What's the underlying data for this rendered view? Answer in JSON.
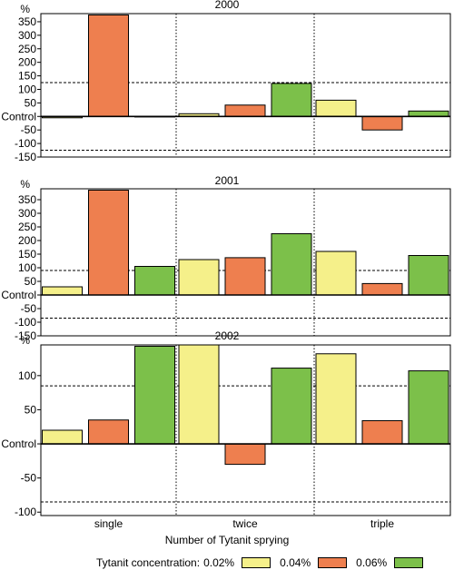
{
  "chart_data": [
    {
      "type": "bar",
      "title": "2000",
      "unit": "%",
      "categories": [
        "single",
        "twice",
        "triple"
      ],
      "series": [
        {
          "name": "0.02%",
          "color": "#f5f08a",
          "values": [
            -5,
            10,
            60
          ]
        },
        {
          "name": "0.04%",
          "color": "#ee7f4f",
          "values": [
            375,
            42,
            -50
          ]
        },
        {
          "name": "0.06%",
          "color": "#7cc04a",
          "values": [
            -2,
            122,
            20
          ]
        }
      ],
      "yticks": [
        "-150",
        "-100",
        "-50",
        "Control",
        "50",
        "100",
        "150",
        "200",
        "250",
        "300",
        "350"
      ],
      "ylim": [
        -150,
        380
      ],
      "reference_lines": [
        125,
        -125
      ],
      "grid": false
    },
    {
      "type": "bar",
      "title": "2001",
      "unit": "%",
      "categories": [
        "single",
        "twice",
        "triple"
      ],
      "series": [
        {
          "name": "0.02%",
          "color": "#f5f08a",
          "values": [
            30,
            130,
            160
          ]
        },
        {
          "name": "0.04%",
          "color": "#ee7f4f",
          "values": [
            385,
            137,
            42
          ]
        },
        {
          "name": "0.06%",
          "color": "#7cc04a",
          "values": [
            105,
            225,
            145
          ]
        }
      ],
      "yticks": [
        "-150",
        "-100",
        "-50",
        "Control",
        "50",
        "100",
        "150",
        "200",
        "250",
        "300",
        "350"
      ],
      "ylim": [
        -150,
        390
      ],
      "reference_lines": [
        90,
        -85
      ],
      "grid": false
    },
    {
      "type": "bar",
      "title": "2002",
      "unit": "%",
      "categories": [
        "single",
        "twice",
        "triple"
      ],
      "series": [
        {
          "name": "0.02%",
          "color": "#f5f08a",
          "values": [
            20,
            145,
            132
          ]
        },
        {
          "name": "0.04%",
          "color": "#ee7f4f",
          "values": [
            35,
            -30,
            34
          ]
        },
        {
          "name": "0.06%",
          "color": "#7cc04a",
          "values": [
            143,
            111,
            107
          ]
        }
      ],
      "yticks": [
        "-100",
        "-50",
        "Control",
        "50",
        "100"
      ],
      "ylim": [
        -105,
        145
      ],
      "reference_lines": [
        85,
        -85
      ],
      "grid": false
    }
  ],
  "xlabel": "Number of Tytanit sprying",
  "legend": {
    "title": "Tytanit concentration:",
    "items": [
      {
        "label": "0.02%",
        "color": "#f5f08a"
      },
      {
        "label": "0.04%",
        "color": "#ee7f4f"
      },
      {
        "label": "0.06%",
        "color": "#7cc04a"
      }
    ]
  }
}
